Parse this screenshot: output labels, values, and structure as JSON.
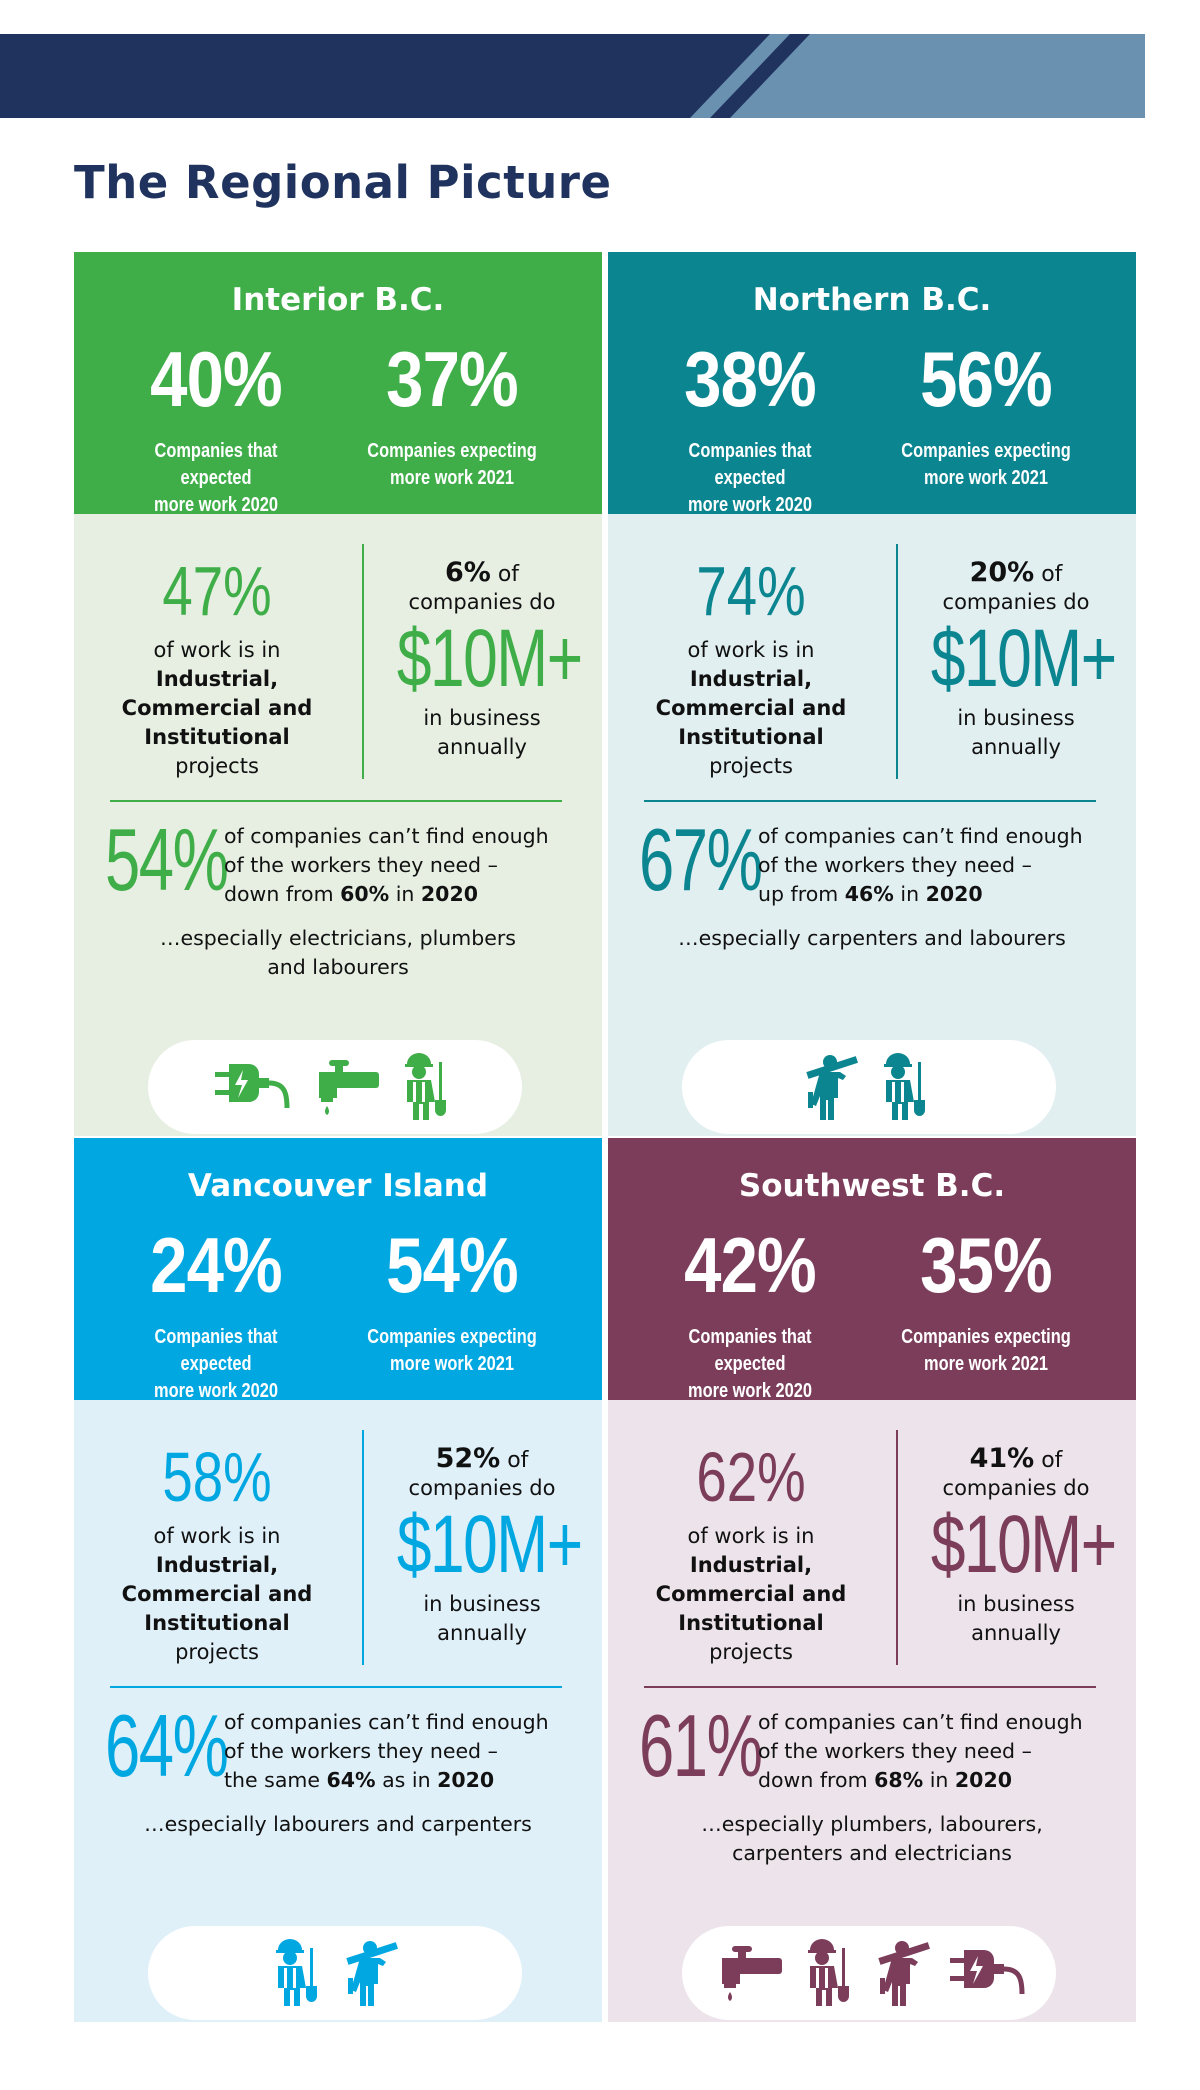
{
  "title": "The Regional Picture",
  "colors": {
    "banner_dark": "#1f335e",
    "banner_light": "#6b91b0",
    "interior": "#3fae49",
    "northern": "#0b8590",
    "vancouver_island": "#00a7e1",
    "southwest": "#7c3d5b"
  },
  "regions": {
    "interior": {
      "name": "Interior B.C.",
      "expected_2020_pct": "40%",
      "expected_2020_label": [
        "Companies that expected",
        "more work 2020"
      ],
      "expecting_2021_pct": "37%",
      "expecting_2021_label": [
        "Companies expecting",
        "more work 2021"
      ],
      "ici_pct": "47%",
      "ici_text": [
        "of work is in",
        "Industrial,",
        "Commercial and",
        "Institutional",
        "projects"
      ],
      "biz_pct": "6%",
      "biz_pct_suffix": "of",
      "biz_pre": "companies do",
      "biz_big": "$10M+",
      "biz_post": [
        "in business",
        "annually"
      ],
      "shortage_pct": "54%",
      "shortage_line1": "of companies can’t find enough",
      "shortage_line2": "of the workers they need –",
      "shortage_line3_pre": "down from",
      "shortage_line3_val": "60%",
      "shortage_line3_mid": "in",
      "shortage_line3_year": "2020",
      "especially": [
        "…especially electricians, plumbers",
        "and labourers"
      ],
      "icons": [
        "electric-plug-icon",
        "water-tap-icon",
        "labourer-icon"
      ]
    },
    "northern": {
      "name": "Northern B.C.",
      "expected_2020_pct": "38%",
      "expected_2020_label": [
        "Companies that expected",
        "more work 2020"
      ],
      "expecting_2021_pct": "56%",
      "expecting_2021_label": [
        "Companies expecting",
        "more work 2021"
      ],
      "ici_pct": "74%",
      "ici_text": [
        "of work is in",
        "Industrial,",
        "Commercial and",
        "Institutional",
        "projects"
      ],
      "biz_pct": "20%",
      "biz_pct_suffix": "of",
      "biz_pre": "companies do",
      "biz_big": "$10M+",
      "biz_post": [
        "in business",
        "annually"
      ],
      "shortage_pct": "67%",
      "shortage_line1": "of companies can’t find enough",
      "shortage_line2": "of the workers they need –",
      "shortage_line3_pre": "up from",
      "shortage_line3_val": "46%",
      "shortage_line3_mid": "in",
      "shortage_line3_year": "2020",
      "especially": [
        "…especially carpenters and labourers"
      ],
      "icons": [
        "carpenter-icon",
        "labourer-icon"
      ]
    },
    "vancouver_island": {
      "name": "Vancouver Island",
      "expected_2020_pct": "24%",
      "expected_2020_label": [
        "Companies that expected",
        "more work 2020"
      ],
      "expecting_2021_pct": "54%",
      "expecting_2021_label": [
        "Companies expecting",
        "more work 2021"
      ],
      "ici_pct": "58%",
      "ici_text": [
        "of work is in",
        "Industrial,",
        "Commercial and",
        "Institutional",
        "projects"
      ],
      "biz_pct": "52%",
      "biz_pct_suffix": "of",
      "biz_pre": "companies do",
      "biz_big": "$10M+",
      "biz_post": [
        "in business",
        "annually"
      ],
      "shortage_pct": "64%",
      "shortage_line1": "of companies can’t find enough",
      "shortage_line2": "of the workers they need –",
      "shortage_line3_pre": "the same",
      "shortage_line3_val": "64%",
      "shortage_line3_mid": "as in",
      "shortage_line3_year": "2020",
      "especially": [
        "…especially labourers and carpenters"
      ],
      "icons": [
        "labourer-icon",
        "carpenter-icon"
      ]
    },
    "southwest": {
      "name": "Southwest B.C.",
      "expected_2020_pct": "42%",
      "expected_2020_label": [
        "Companies that expected",
        "more work 2020"
      ],
      "expecting_2021_pct": "35%",
      "expecting_2021_label": [
        "Companies expecting",
        "more work 2021"
      ],
      "ici_pct": "62%",
      "ici_text": [
        "of work is in",
        "Industrial,",
        "Commercial and",
        "Institutional",
        "projects"
      ],
      "biz_pct": "41%",
      "biz_pct_suffix": "of",
      "biz_pre": "companies do",
      "biz_big": "$10M+",
      "biz_post": [
        "in business",
        "annually"
      ],
      "shortage_pct": "61%",
      "shortage_line1": "of companies can’t find enough",
      "shortage_line2": "of the workers they need –",
      "shortage_line3_pre": "down from",
      "shortage_line3_val": "68%",
      "shortage_line3_mid": "in",
      "shortage_line3_year": "2020",
      "especially": [
        "…especially plumbers, labourers,",
        "carpenters and electricians"
      ],
      "icons": [
        "water-tap-icon",
        "labourer-icon",
        "carpenter-icon",
        "electric-plug-icon"
      ]
    }
  }
}
